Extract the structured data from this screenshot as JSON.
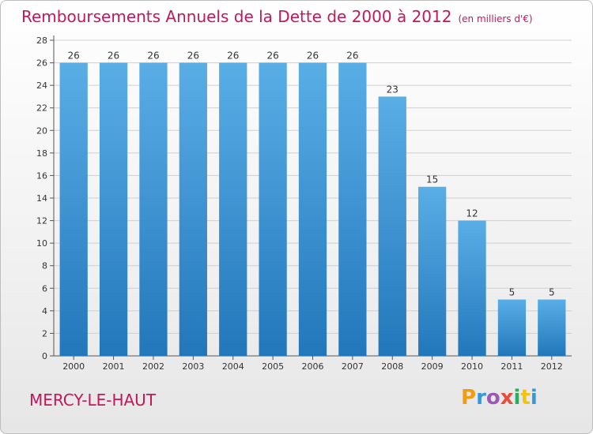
{
  "header": {
    "title": "Remboursements Annuels de la Dette de 2000 à 2012",
    "subtitle": "(en milliers d'€)"
  },
  "footer": {
    "commune": "MERCY-LE-HAUT",
    "logo_letters": [
      "P",
      "r",
      "o",
      "x",
      "i",
      "t",
      "i"
    ]
  },
  "colors": {
    "title": "#c2185b",
    "bar_top": "#5aaee6",
    "bar_bottom": "#2277bb",
    "grid": "#cfcfcf"
  },
  "chart_data": {
    "type": "bar",
    "title": "Remboursements Annuels de la Dette de 2000 à 2012",
    "subtitle": "(en milliers d'€)",
    "categories": [
      "2000",
      "2001",
      "2002",
      "2003",
      "2004",
      "2005",
      "2006",
      "2007",
      "2008",
      "2009",
      "2010",
      "2011",
      "2012"
    ],
    "values": [
      26,
      26,
      26,
      26,
      26,
      26,
      26,
      26,
      23,
      15,
      12,
      5,
      5
    ],
    "data_labels": [
      "26",
      "26",
      "26",
      "26",
      "26",
      "26",
      "26",
      "26",
      "23",
      "15",
      "12",
      "5",
      "5"
    ],
    "ylim": [
      0,
      28
    ],
    "yticks": [
      0,
      2,
      4,
      6,
      8,
      10,
      12,
      14,
      16,
      18,
      20,
      22,
      24,
      26,
      28
    ],
    "grid": true,
    "legend": "none"
  }
}
